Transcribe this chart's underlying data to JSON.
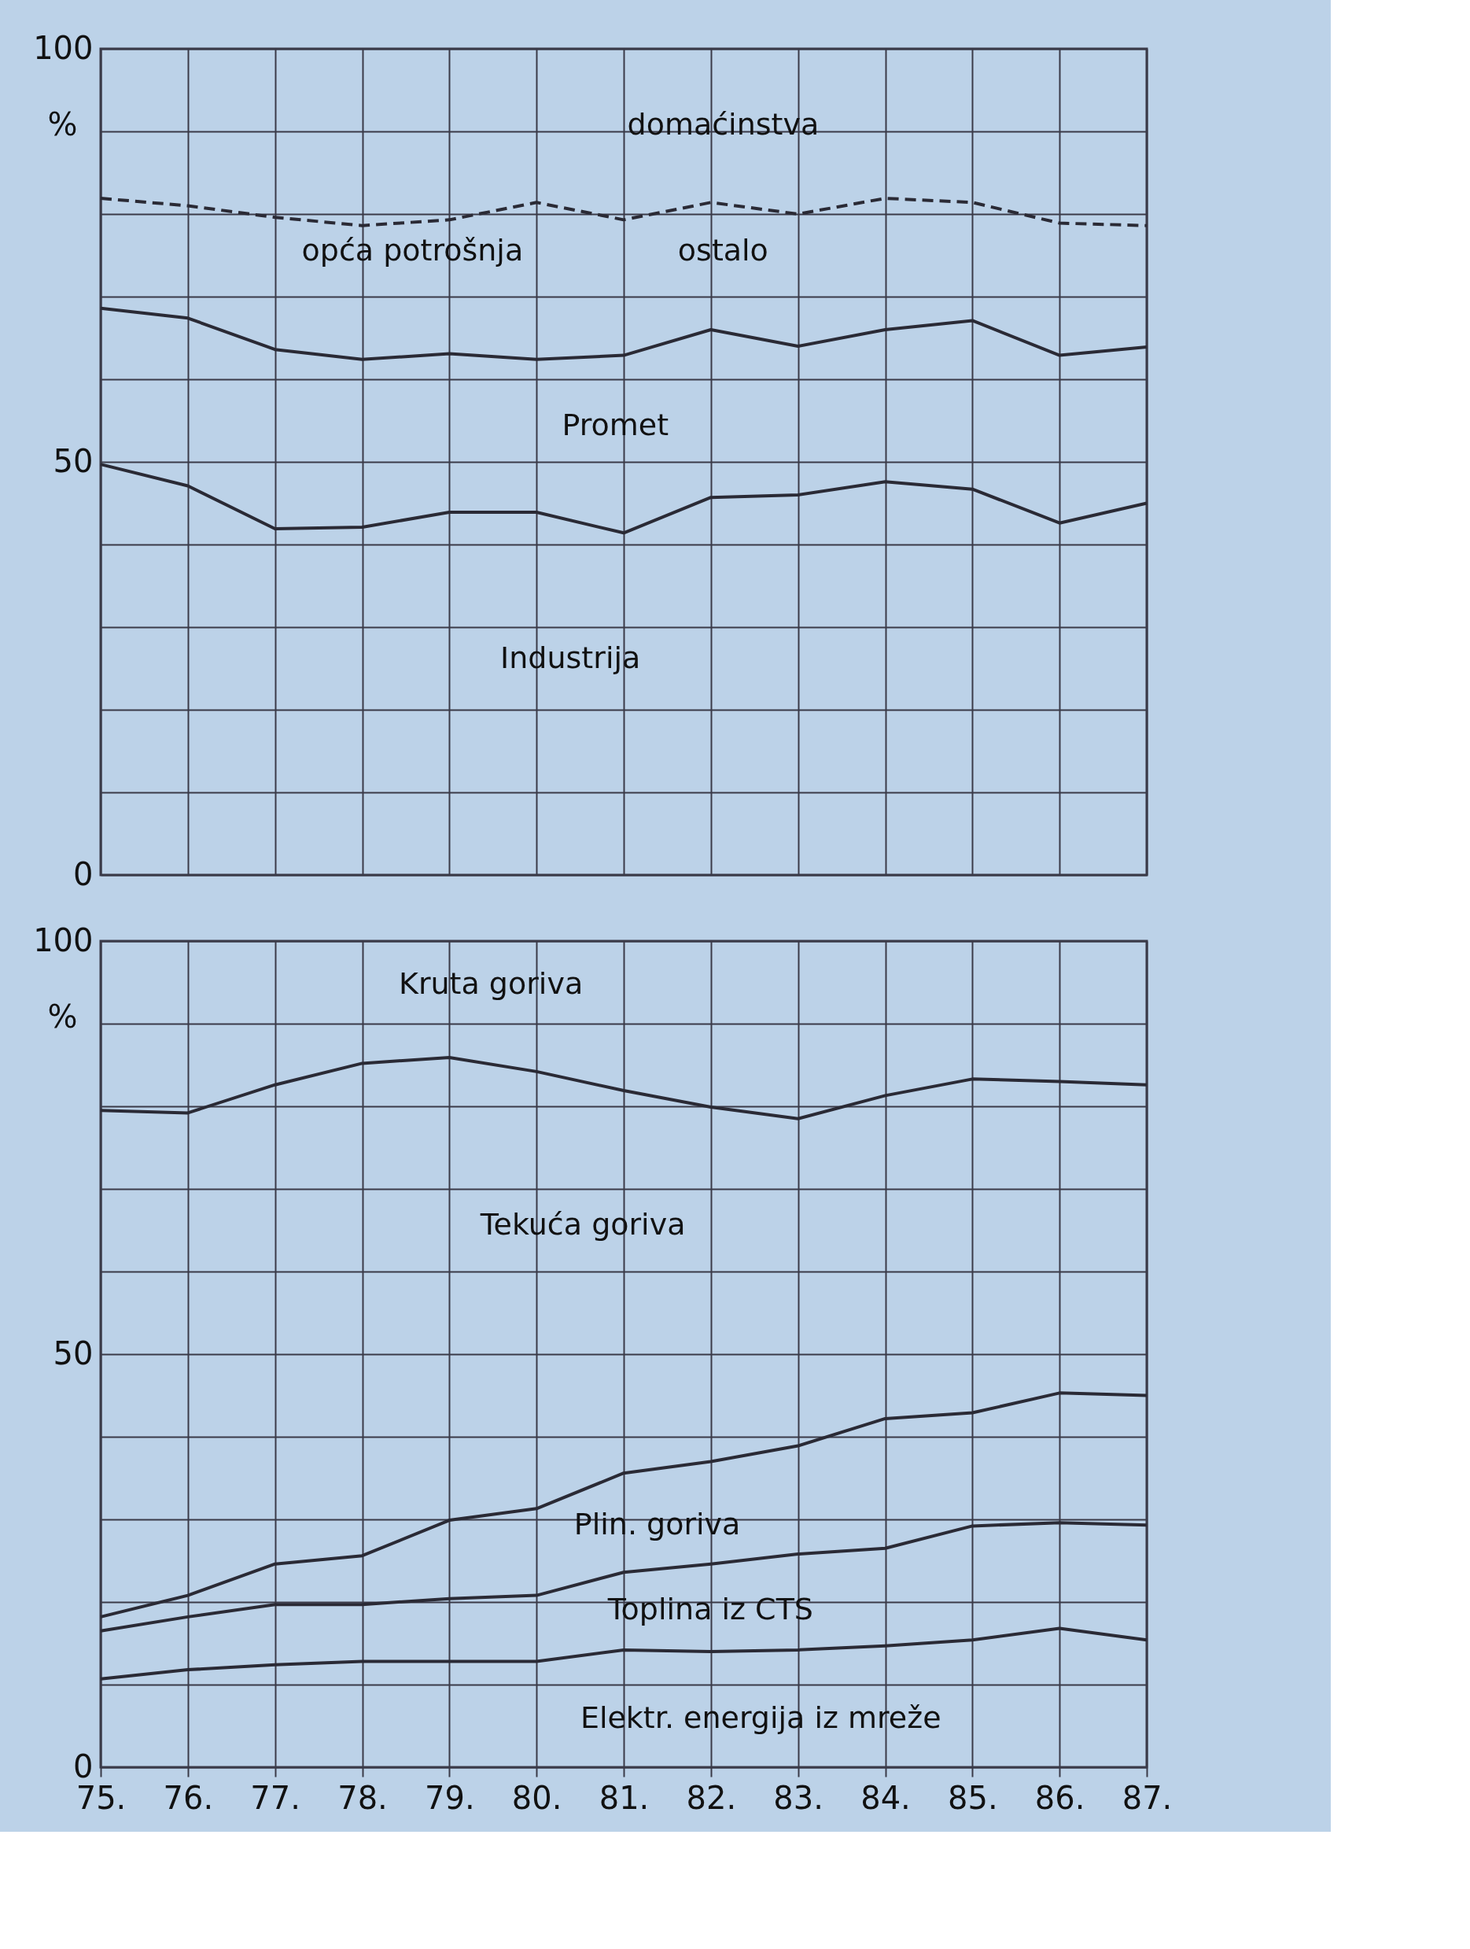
{
  "chart_data": [
    {
      "type": "line",
      "ylabel": "%",
      "categories": [
        "75.",
        "76.",
        "77.",
        "78.",
        "79.",
        "80.",
        "81.",
        "82.",
        "83.",
        "84.",
        "85.",
        "86.",
        "87."
      ],
      "tick_labels": "y",
      "grid": true,
      "ylim": [
        0,
        100
      ],
      "yticks": [
        0,
        {
          "value": 10,
          "label": null
        },
        {
          "value": 20,
          "label": null
        },
        {
          "value": 30,
          "label": null
        },
        {
          "value": 40,
          "label": null
        },
        50,
        {
          "value": 60,
          "label": null
        },
        {
          "value": 70,
          "label": null
        },
        {
          "value": 80,
          "label": null
        },
        {
          "value": 90,
          "label": null
        },
        100
      ],
      "series": [
        {
          "color": "#2a2a35",
          "line_style": "dashed",
          "values": [
            81.9,
            81.0,
            79.6,
            78.6,
            79.3,
            81.4,
            79.3,
            81.4,
            80.0,
            81.9,
            81.4,
            78.9,
            78.6
          ]
        },
        {
          "color": "#2a2a35",
          "line_style": "solid",
          "values": [
            68.6,
            67.4,
            63.6,
            62.4,
            63.1,
            62.4,
            62.9,
            66.0,
            64.0,
            66.0,
            67.1,
            62.9,
            63.9
          ]
        },
        {
          "color": "#2a2a35",
          "line_style": "solid",
          "values": [
            49.7,
            47.1,
            41.9,
            42.1,
            43.9,
            43.9,
            41.4,
            45.7,
            46.0,
            47.6,
            46.7,
            42.6,
            45.0
          ]
        }
      ],
      "annotations": [
        "domaćinstva",
        "opća potrošnja",
        "ostalo",
        "Promet",
        "Industrija"
      ]
    },
    {
      "type": "line",
      "ylabel": "%",
      "categories": [
        "75.",
        "76.",
        "77.",
        "78.",
        "79.",
        "80.",
        "81.",
        "82.",
        "83.",
        "84.",
        "85.",
        "86.",
        "87."
      ],
      "grid": true,
      "ylim": [
        0,
        100
      ],
      "yticks": [
        0,
        {
          "value": 10,
          "label": null
        },
        {
          "value": 20,
          "label": null
        },
        {
          "value": 30,
          "label": null
        },
        {
          "value": 40,
          "label": null
        },
        50,
        {
          "value": 60,
          "label": null
        },
        {
          "value": 70,
          "label": null
        },
        {
          "value": 80,
          "label": null
        },
        {
          "value": 90,
          "label": null
        },
        100
      ],
      "series": [
        {
          "color": "#2a2a35",
          "line_style": "solid",
          "values": [
            79.5,
            79.2,
            82.6,
            85.2,
            85.9,
            84.2,
            81.9,
            79.9,
            78.5,
            81.3,
            83.3,
            83.0,
            82.6
          ]
        },
        {
          "color": "#2a2a35",
          "line_style": "solid",
          "values": [
            18.2,
            20.8,
            24.6,
            25.6,
            29.9,
            31.3,
            35.6,
            37.0,
            38.9,
            42.2,
            42.9,
            45.3,
            45.0
          ]
        },
        {
          "color": "#2a2a35",
          "line_style": "solid",
          "values": [
            16.5,
            18.2,
            19.7,
            19.7,
            20.4,
            20.8,
            23.6,
            24.6,
            25.8,
            26.5,
            29.2,
            29.6,
            29.3
          ]
        },
        {
          "color": "#2a2a35",
          "line_style": "solid",
          "values": [
            10.7,
            11.8,
            12.4,
            12.8,
            12.8,
            12.8,
            14.2,
            14.0,
            14.2,
            14.7,
            15.4,
            16.8,
            15.4
          ]
        }
      ],
      "annotations": [
        "Kruta goriva",
        "Tekuća goriva",
        "Plin. goriva",
        "Toplina iz CTS",
        "Elektr. energija iz mreže"
      ]
    }
  ]
}
